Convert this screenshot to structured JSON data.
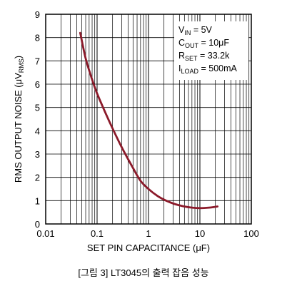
{
  "caption": "[그림 3] LT3045의 출력 잡음 성능",
  "chart_data": {
    "type": "line",
    "title": "",
    "xlabel": "SET PIN CAPACITANCE (μF)",
    "ylabel": "RMS OUTPUT NOISE (μV",
    "ylabel_sub": "RMS",
    "ylabel_end": ")",
    "xscale": "log",
    "xlim": [
      0.01,
      100
    ],
    "ylim": [
      0,
      9
    ],
    "xticks": [
      0.01,
      0.1,
      1,
      10,
      100
    ],
    "xtick_labels": [
      "0.01",
      "0.1",
      "1",
      "10",
      "100"
    ],
    "yticks": [
      0,
      1,
      2,
      3,
      4,
      5,
      6,
      7,
      8,
      9
    ],
    "ytick_labels": [
      "0",
      "1",
      "2",
      "3",
      "4",
      "5",
      "6",
      "7",
      "8",
      "9"
    ],
    "grid": true,
    "line_color": "#8b1a2a",
    "series": [
      {
        "name": "",
        "x": [
          0.047,
          0.06,
          0.08,
          0.1,
          0.15,
          0.2,
          0.3,
          0.5,
          0.7,
          1.0,
          1.5,
          2.2,
          3.3,
          5,
          7,
          10,
          15,
          22
        ],
        "y": [
          8.2,
          7.1,
          6.2,
          5.6,
          4.7,
          4.1,
          3.3,
          2.4,
          1.85,
          1.5,
          1.2,
          1.0,
          0.85,
          0.75,
          0.7,
          0.68,
          0.7,
          0.75
        ]
      }
    ],
    "legend_box": {
      "position": "top-right",
      "lines": [
        {
          "main": "V",
          "sub": "IN",
          "rest": " = 5V"
        },
        {
          "main": "C",
          "sub": "OUT",
          "rest": " = 10μF"
        },
        {
          "main": "R",
          "sub": "SET",
          "rest": " = 33.2k"
        },
        {
          "main": "I",
          "sub": "LOAD",
          "rest": " = 500mA"
        }
      ]
    }
  }
}
